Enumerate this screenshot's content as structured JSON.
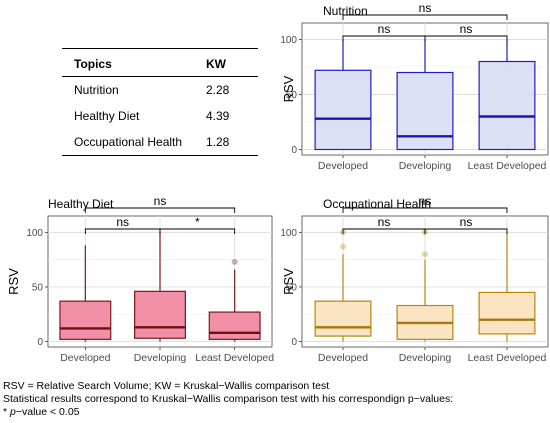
{
  "table": {
    "headers": [
      "Topics",
      "KW"
    ],
    "rows": [
      {
        "topic": "Nutrition",
        "kw": "2.28"
      },
      {
        "topic": "Healthy Diet",
        "kw": "4.39"
      },
      {
        "topic": "Occupational Health",
        "kw": "1.28"
      }
    ]
  },
  "chart_data": [
    {
      "type": "box",
      "title": "Nutrition",
      "ylabel": "RSV",
      "xlabel": "",
      "ylim": [
        -5,
        115
      ],
      "yticks": [
        0,
        50,
        100
      ],
      "grid": true,
      "categories": [
        "Developed",
        "Developing",
        "Least Developed"
      ],
      "boxes": [
        {
          "min": 0,
          "q1": 0,
          "median": 28,
          "q3": 72,
          "max": 100,
          "outliers": []
        },
        {
          "min": 0,
          "q1": 0,
          "median": 12,
          "q3": 70,
          "max": 100,
          "outliers": []
        },
        {
          "min": 0,
          "q1": 0,
          "median": 30,
          "q3": 80,
          "max": 100,
          "outliers": []
        }
      ],
      "colors": {
        "line": "#1e1ebd",
        "fill": "#dde0f5",
        "median": "#1717a8"
      },
      "comparisons": [
        {
          "from": 0,
          "to": 1,
          "label": "ns",
          "level": 0
        },
        {
          "from": 1,
          "to": 2,
          "label": "ns",
          "level": 0
        },
        {
          "from": 0,
          "to": 2,
          "label": "ns",
          "level": 1
        }
      ]
    },
    {
      "type": "box",
      "title": "Healthy Diet",
      "ylabel": "RSV",
      "xlabel": "",
      "ylim": [
        -5,
        115
      ],
      "yticks": [
        0,
        50,
        100
      ],
      "grid": true,
      "categories": [
        "Developed",
        "Developing",
        "Least Developed"
      ],
      "boxes": [
        {
          "min": 0,
          "q1": 2,
          "median": 12,
          "q3": 37,
          "max": 88,
          "outliers": []
        },
        {
          "min": 0,
          "q1": 3,
          "median": 13,
          "q3": 46,
          "max": 100,
          "outliers": []
        },
        {
          "min": 0,
          "q1": 2,
          "median": 8,
          "q3": 27,
          "max": 66,
          "outliers": [
            73
          ]
        }
      ],
      "colors": {
        "line": "#7a1a1a",
        "fill": "#f08fa5",
        "median": "#6a1010"
      },
      "comparisons": [
        {
          "from": 0,
          "to": 1,
          "label": "ns",
          "level": 0
        },
        {
          "from": 1,
          "to": 2,
          "label": "*",
          "level": 0
        },
        {
          "from": 0,
          "to": 2,
          "label": "ns",
          "level": 1
        }
      ]
    },
    {
      "type": "box",
      "title": "Occupational Health",
      "ylabel": "RSV",
      "xlabel": "",
      "ylim": [
        -5,
        115
      ],
      "yticks": [
        0,
        50,
        100
      ],
      "grid": true,
      "categories": [
        "Developed",
        "Developing",
        "Least Developed"
      ],
      "boxes": [
        {
          "min": 0,
          "q1": 5,
          "median": 13,
          "q3": 37,
          "max": 80,
          "outliers": [
            87,
            100
          ]
        },
        {
          "min": 0,
          "q1": 2,
          "median": 17,
          "q3": 33,
          "max": 75,
          "outliers": [
            80,
            100
          ]
        },
        {
          "min": 0,
          "q1": 7,
          "median": 20,
          "q3": 45,
          "max": 100,
          "outliers": []
        }
      ],
      "colors": {
        "line": "#b8860b",
        "fill": "#fbe4c4",
        "median": "#a8760a"
      },
      "comparisons": [
        {
          "from": 0,
          "to": 1,
          "label": "ns",
          "level": 0
        },
        {
          "from": 1,
          "to": 2,
          "label": "ns",
          "level": 0
        },
        {
          "from": 0,
          "to": 2,
          "label": "ns",
          "level": 1
        }
      ]
    }
  ],
  "notes": {
    "line1": "RSV = Relative Search Volume; KW = Kruskal−Wallis comparison test",
    "line2": "Statistical results correspond to Kruskal−Wallis comparison test with his correspondign p−values:",
    "line3_prefix": "* ",
    "line3_italic": "p",
    "line3_suffix": "−value < 0.05"
  }
}
